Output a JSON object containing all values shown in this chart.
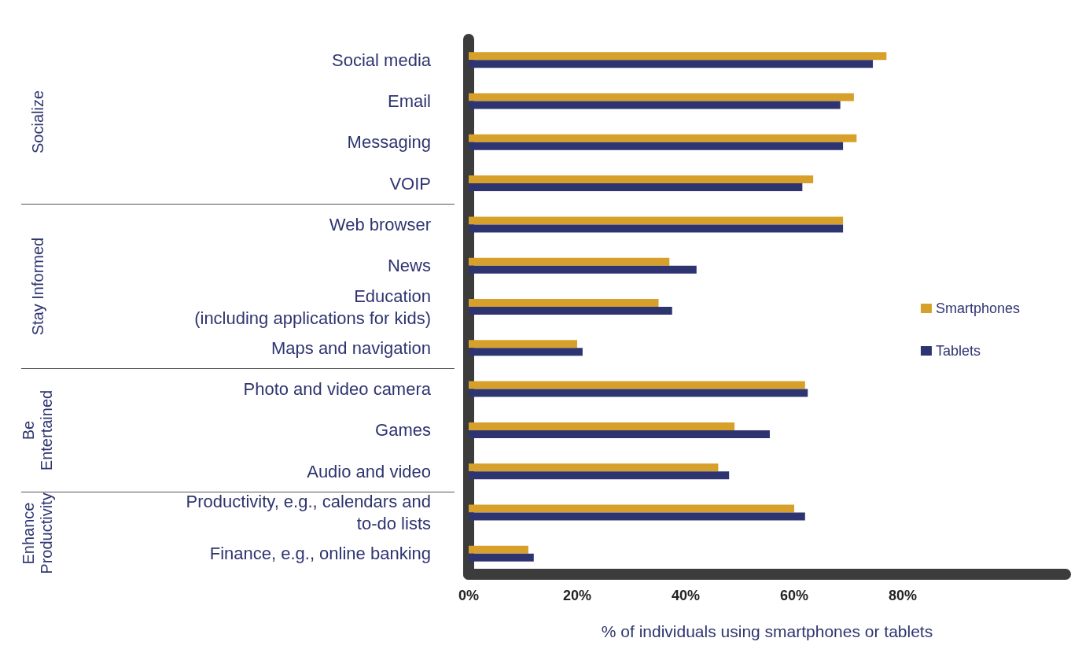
{
  "chart_data": {
    "type": "bar",
    "orientation": "horizontal",
    "xlabel": "% of individuals using smartphones or tablets",
    "categories": [
      "Social media",
      "Email",
      "Messaging",
      "VOIP",
      "Web browser",
      "News",
      "Education\n(including applications for kids)",
      "Maps and navigation",
      "Photo and video camera",
      "Games",
      "Audio and video",
      "Productivity, e.g., calendars and\nto-do lists",
      "Finance, e.g., online banking"
    ],
    "series": [
      {
        "name": "Smartphones",
        "color": "#d6a02b",
        "values": [
          77,
          71,
          71.5,
          63.5,
          69,
          37,
          35,
          20,
          62,
          49,
          46,
          60,
          11
        ]
      },
      {
        "name": "Tablets",
        "color": "#2e3470",
        "values": [
          74.5,
          68.5,
          69,
          61.5,
          69,
          42,
          37.5,
          21,
          62.5,
          55.5,
          48,
          62,
          12
        ]
      }
    ],
    "xlim": [
      0,
      110
    ],
    "xticks": [
      {
        "value": 0,
        "label": "0%"
      },
      {
        "value": 20,
        "label": "20%"
      },
      {
        "value": 40,
        "label": "40%"
      },
      {
        "value": 60,
        "label": "60%"
      },
      {
        "value": 80,
        "label": "80%"
      }
    ],
    "annotations": [
      "Socialize",
      "Stay Informed",
      "Be\nEntertained",
      "Enhance\nProductivity"
    ],
    "grid": false,
    "legend": "right"
  }
}
